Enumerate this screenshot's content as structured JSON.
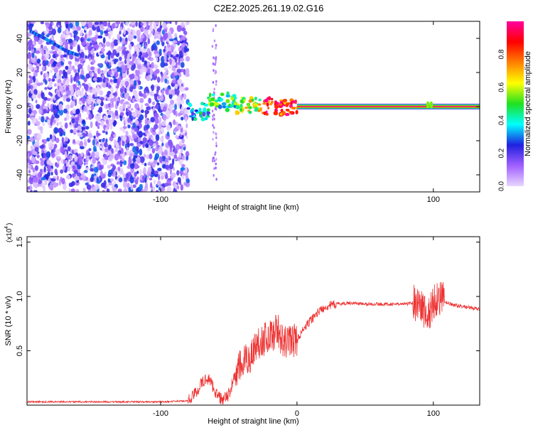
{
  "page_title": "C2E2.2025.261.19.02.G16",
  "chart_data": [
    {
      "type": "heatmap",
      "title": "C2E2.2025.261.19.02.G16",
      "xlabel": "Height of straight line (km)",
      "ylabel": "Frequency (Hz)",
      "xlim": [
        -198,
        134
      ],
      "ylim": [
        -50,
        50
      ],
      "xticks": [
        -100,
        100
      ],
      "xtick_labels": [
        "-100",
        "100"
      ],
      "yticks": [
        40,
        20,
        0,
        -20,
        -40
      ],
      "ytick_labels": [
        "40",
        "20",
        "0",
        "-20",
        "-40"
      ],
      "colorbar": {
        "label": "Normalized spectral amplitude",
        "range": [
          0.0,
          1.0
        ],
        "ticks": [
          0.8,
          0.6,
          0.4,
          0.2,
          0.0
        ],
        "tick_labels": [
          "0.8",
          "0.6",
          "0.4",
          "0.2",
          "0.0"
        ],
        "colors": [
          "#e9d6ff",
          "#a060ff",
          "#2020e0",
          "#00ffff",
          "#20e020",
          "#ffff00",
          "#ff8000",
          "#ff0000",
          "#ff00a0"
        ]
      },
      "noise_region_x": [
        -198,
        -80
      ],
      "band_segments": [
        {
          "x_start": -80,
          "x_end": -65,
          "freq": -3,
          "level": 0.35
        },
        {
          "x_start": -65,
          "x_end": -45,
          "freq": 3,
          "level": 0.45
        },
        {
          "x_start": -45,
          "x_end": -25,
          "freq": 1,
          "level": 0.6
        },
        {
          "x_start": -25,
          "x_end": 0,
          "freq": 0,
          "level": 0.85
        },
        {
          "x_start": 0,
          "x_end": 134,
          "freq": 0,
          "level": 0.95
        }
      ],
      "streak": {
        "x": [
          -195,
          -185,
          -170,
          -160
        ],
        "freq": [
          44,
          40,
          33,
          30
        ]
      }
    },
    {
      "type": "line",
      "xlabel": "Height of straight line (km)",
      "ylabel": "SNR (10 * v/v)",
      "y_multiplier_label": "(x10",
      "y_multiplier_exponent": "4",
      "xlim": [
        -198,
        134
      ],
      "ylim": [
        0,
        1.55
      ],
      "xticks": [
        -100,
        0,
        100
      ],
      "xtick_labels": [
        "-100",
        "0",
        "100"
      ],
      "yticks": [
        0.5,
        1.0,
        1.5
      ],
      "ytick_labels": [
        "0.5",
        "1.0",
        "1.5"
      ],
      "series": [
        {
          "name": "SNR",
          "color": "#ee3333",
          "x": [
            -198,
            -180,
            -160,
            -140,
            -120,
            -100,
            -80,
            -75,
            -70,
            -65,
            -62,
            -58,
            -54,
            -50,
            -46,
            -42,
            -38,
            -34,
            -30,
            -26,
            -22,
            -18,
            -14,
            -10,
            -6,
            -2,
            0,
            5,
            10,
            15,
            20,
            25,
            30,
            40,
            50,
            60,
            70,
            80,
            88,
            92,
            96,
            100,
            104,
            108,
            115,
            125,
            134
          ],
          "y": [
            0.03,
            0.03,
            0.03,
            0.03,
            0.03,
            0.03,
            0.04,
            0.1,
            0.2,
            0.25,
            0.18,
            0.08,
            0.04,
            0.1,
            0.25,
            0.35,
            0.4,
            0.45,
            0.55,
            0.6,
            0.62,
            0.65,
            0.7,
            0.55,
            0.6,
            0.6,
            0.6,
            0.7,
            0.78,
            0.85,
            0.9,
            0.92,
            0.93,
            0.94,
            0.93,
            0.93,
            0.93,
            0.93,
            0.95,
            0.9,
            0.8,
            0.95,
            1.0,
            0.95,
            0.92,
            0.9,
            0.88
          ]
        }
      ]
    }
  ]
}
